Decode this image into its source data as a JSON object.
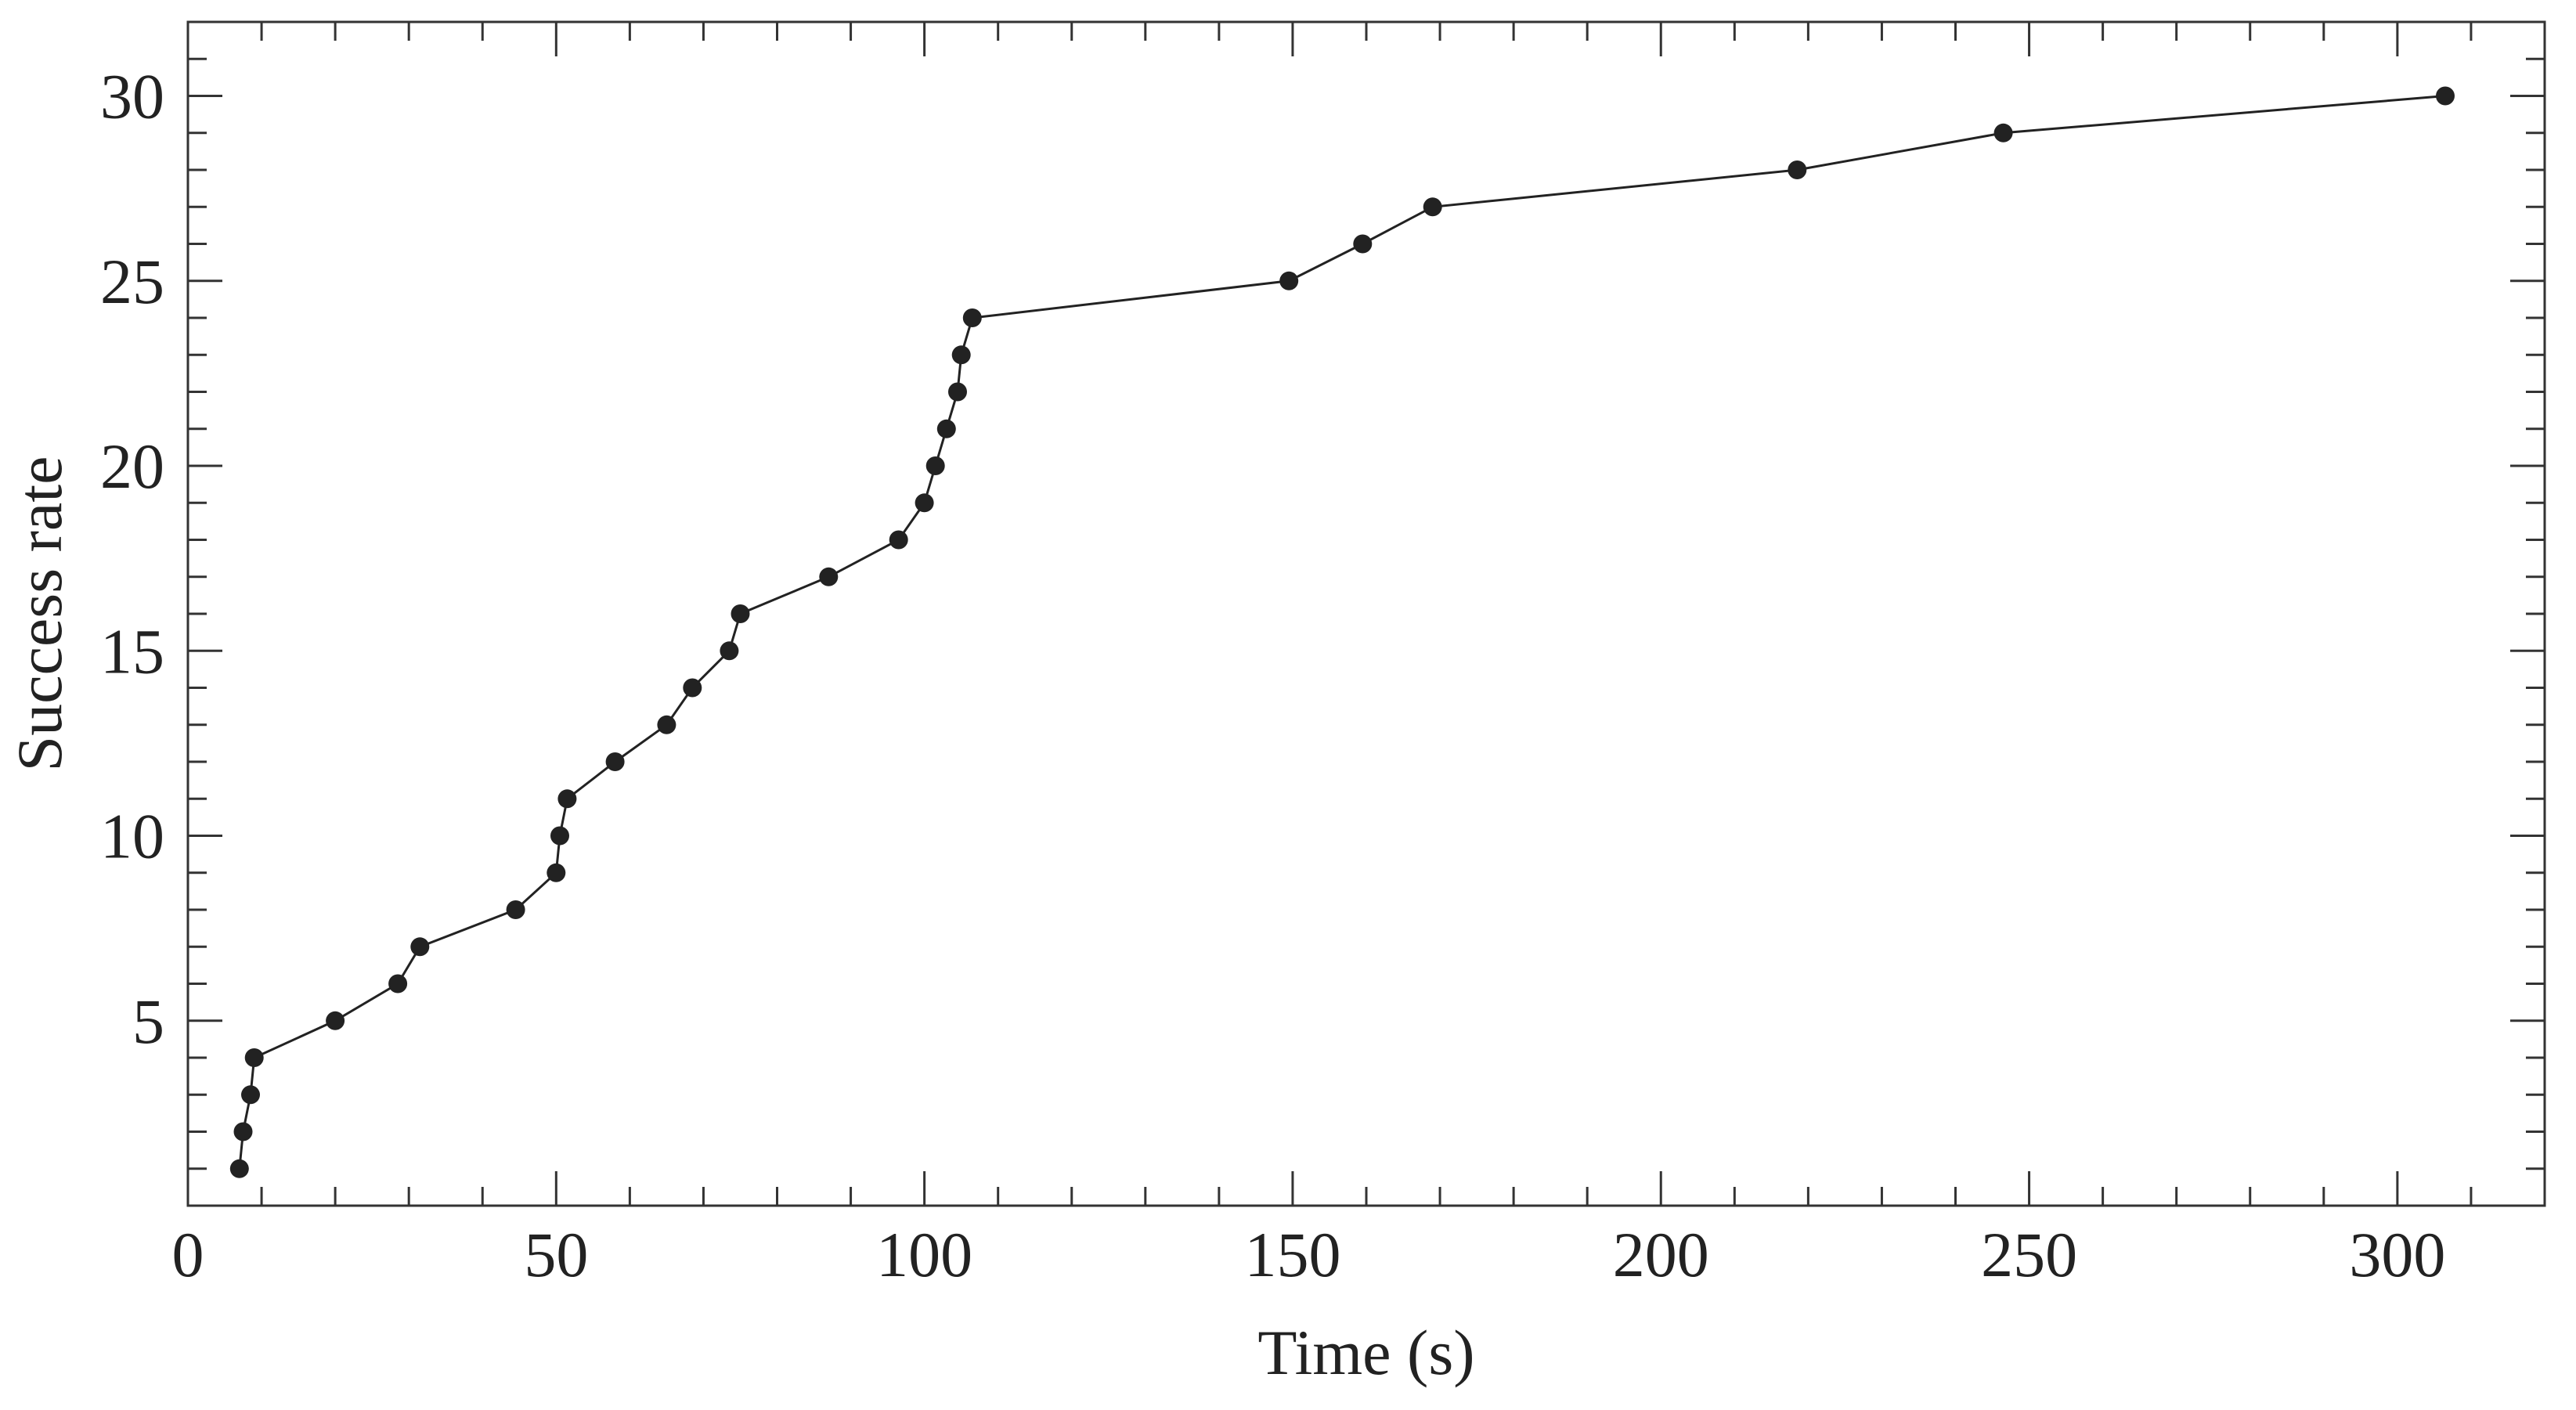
{
  "chart_data": {
    "type": "line",
    "xlabel": "Time (s)",
    "ylabel": "Success rate",
    "xlim": [
      0,
      320
    ],
    "ylim": [
      0,
      32
    ],
    "xticks": [
      0,
      50,
      100,
      150,
      200,
      250,
      300
    ],
    "yticks": [
      5,
      10,
      15,
      20,
      25,
      30
    ],
    "x_minor_step": 10,
    "y_minor_step": 1,
    "grid": false,
    "legend": "none",
    "colors": {
      "line": "#222222",
      "marker": "#222222",
      "frame": "#333333",
      "text": "#222222"
    },
    "series": [
      {
        "x": [
          7.0,
          7.5,
          8.5,
          9.0,
          20.0,
          28.5,
          31.5,
          44.5,
          50.0,
          50.5,
          51.5,
          58.0,
          65.0,
          68.5,
          73.5,
          75.0,
          87.0,
          96.5,
          100.0,
          101.5,
          103.0,
          104.5,
          105.0,
          106.5,
          149.5,
          159.5,
          169.0,
          218.5,
          246.5,
          306.5
        ],
        "y": [
          1,
          2,
          3,
          4,
          5,
          6,
          7,
          8,
          9,
          10,
          11,
          12,
          13,
          14,
          15,
          16,
          17,
          18,
          19,
          20,
          21,
          22,
          23,
          24,
          25,
          26,
          27,
          28,
          29,
          30
        ]
      }
    ]
  }
}
